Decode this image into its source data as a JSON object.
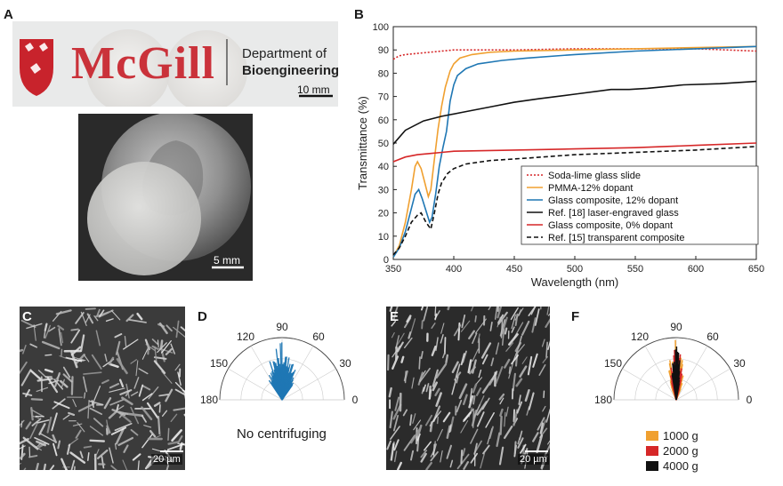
{
  "panels": {
    "A": {
      "label": "A",
      "logo_text": "McGill",
      "dept_line1": "Department of",
      "dept_line2": "Bioengineering",
      "scale_bar": "10 mm"
    },
    "A2": {
      "scale_bar": "5 mm"
    },
    "B": {
      "label": "B"
    },
    "C": {
      "label": "C",
      "scale_bar": "20 µm"
    },
    "D": {
      "label": "D",
      "caption": "No centrifuging"
    },
    "E": {
      "label": "E",
      "scale_bar": "20 µm"
    },
    "F": {
      "label": "F"
    }
  },
  "chart_data": [
    {
      "type": "line",
      "panel": "B",
      "xlabel": "Wavelength (nm)",
      "ylabel": "Transmittance (%)",
      "xlim": [
        350,
        650
      ],
      "ylim": [
        0,
        100
      ],
      "x_ticks": [
        350,
        400,
        450,
        500,
        550,
        600,
        650
      ],
      "y_ticks": [
        0,
        10,
        20,
        30,
        40,
        50,
        60,
        70,
        80,
        90,
        100
      ],
      "legend_position": "lower-right",
      "series": [
        {
          "name": "Soda-lime glass slide",
          "color": "#d62728",
          "dash": "dotted",
          "x": [
            350,
            355,
            360,
            370,
            380,
            390,
            400,
            450,
            500,
            550,
            600,
            650
          ],
          "y": [
            86,
            87.5,
            88,
            88.5,
            89,
            89.5,
            90,
            90,
            90.5,
            90.5,
            90.5,
            89.5
          ]
        },
        {
          "name": "PMMA-12% dopant",
          "color": "#f0a030",
          "dash": "solid",
          "x": [
            350,
            355,
            360,
            365,
            368,
            370,
            373,
            376,
            379,
            381,
            384,
            387,
            390,
            393,
            397,
            400,
            405,
            415,
            430,
            450,
            500,
            550,
            600,
            650
          ],
          "y": [
            1,
            6,
            16,
            30,
            40,
            42,
            39,
            33,
            27,
            30,
            43,
            56,
            66,
            74,
            81,
            84,
            86.5,
            88,
            89,
            89.5,
            90,
            90.5,
            91,
            91.5
          ]
        },
        {
          "name": "Glass composite, 12% dopant",
          "color": "#1f77b4",
          "dash": "solid",
          "x": [
            350,
            355,
            360,
            365,
            368,
            371,
            374,
            377,
            380,
            382,
            385,
            388,
            391,
            394,
            397,
            400,
            403,
            410,
            420,
            440,
            460,
            500,
            550,
            600,
            650
          ],
          "y": [
            1,
            5,
            12,
            22,
            28,
            30,
            26,
            21,
            16,
            18,
            28,
            40,
            48,
            55,
            68,
            75,
            79,
            82,
            84,
            85.5,
            86.5,
            88,
            89.5,
            90.5,
            91.5
          ]
        },
        {
          "name": "Ref. [18] laser-engraved glass",
          "color": "#111111",
          "dash": "solid",
          "x": [
            350,
            360,
            375,
            390,
            410,
            430,
            450,
            470,
            500,
            530,
            545,
            560,
            590,
            620,
            650
          ],
          "y": [
            49.5,
            55.5,
            59.5,
            61.5,
            63.5,
            65.5,
            67.5,
            69,
            71,
            73,
            73,
            73.5,
            75,
            75.5,
            76.5
          ]
        },
        {
          "name": "Glass composite, 0% dopant",
          "color": "#d62728",
          "dash": "solid",
          "x": [
            350,
            360,
            370,
            380,
            390,
            400,
            450,
            500,
            550,
            600,
            650
          ],
          "y": [
            42,
            44,
            45,
            45.5,
            46,
            46.5,
            47,
            47.5,
            48,
            49,
            50
          ]
        },
        {
          "name": "Ref. [15] transparent composite",
          "color": "#111111",
          "dash": "dashed",
          "x": [
            350,
            355,
            360,
            365,
            370,
            373,
            377,
            381,
            384,
            387,
            390,
            395,
            400,
            410,
            430,
            460,
            500,
            550,
            600,
            650
          ],
          "y": [
            2,
            5,
            10,
            16,
            19,
            20,
            16,
            13,
            20,
            28,
            33,
            37,
            39,
            41,
            42.5,
            43.5,
            45,
            46,
            47,
            48.5
          ]
        }
      ]
    },
    {
      "type": "polar-histogram",
      "panel": "D",
      "theta_ticks": [
        0,
        30,
        60,
        90,
        120,
        150,
        180
      ],
      "series": [
        {
          "name": "",
          "color": "#1f77b4"
        }
      ]
    },
    {
      "type": "polar-histogram",
      "panel": "F",
      "theta_ticks": [
        0,
        30,
        60,
        90,
        120,
        150,
        180
      ],
      "legend_position": "bottom",
      "series": [
        {
          "name": "1000 g",
          "color": "#f0a030"
        },
        {
          "name": "2000 g",
          "color": "#d62728"
        },
        {
          "name": "4000 g",
          "color": "#111111"
        }
      ]
    }
  ]
}
